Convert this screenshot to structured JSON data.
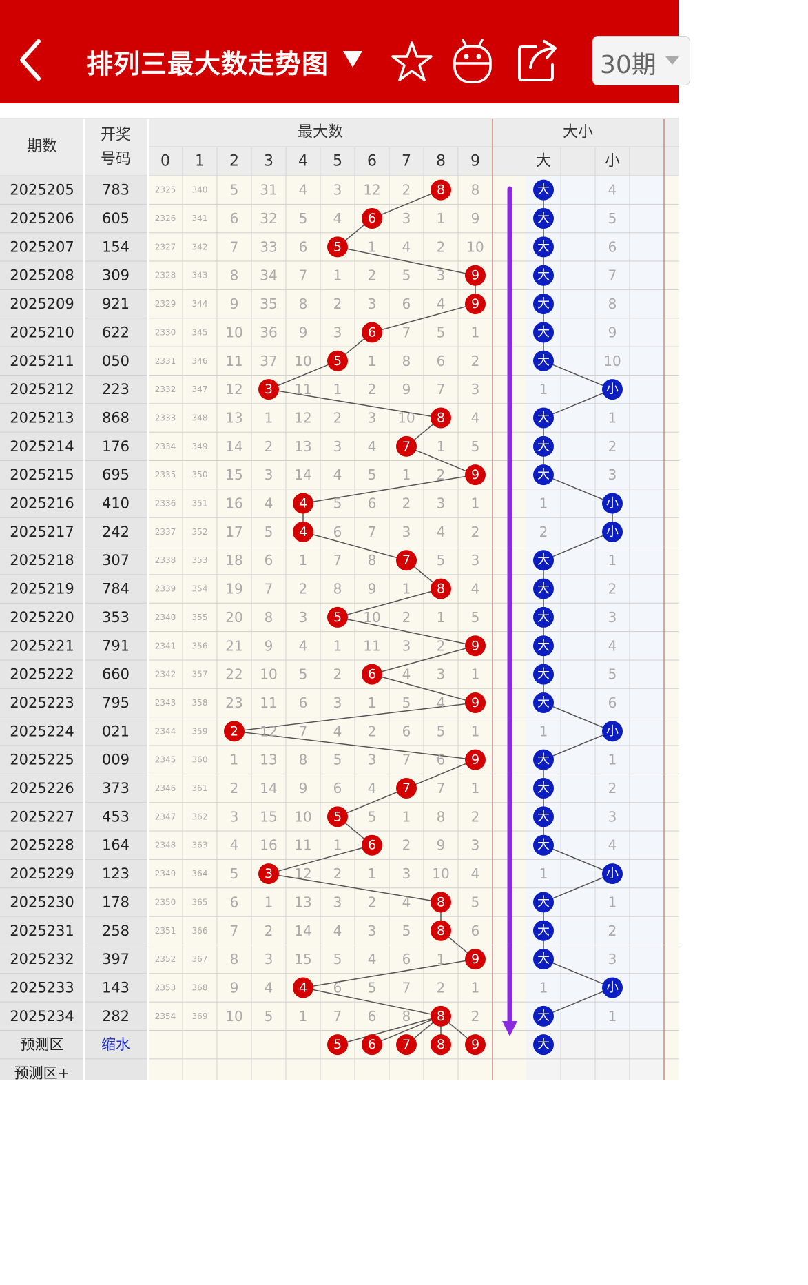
{
  "header": {
    "title": "排列三最大数走势图",
    "period_select": "30期",
    "icons": {
      "back": "back-arrow-icon",
      "title_dropdown": "caret-down-icon",
      "favorite": "star-icon",
      "robot": "android-robot-icon",
      "share": "share-icon",
      "period_dropdown": "chevron-down-icon"
    }
  },
  "colors": {
    "brand_red": "#d10000",
    "ball_red": "#d40000",
    "ball_blue": "#0d1ec0",
    "arrow_purple": "#8a2be2"
  },
  "table": {
    "col_period": "期数",
    "col_code_line1": "开奖",
    "col_code_line2": "号码",
    "group_max": "最大数",
    "group_size": "大小",
    "digit_headers": [
      "0",
      "1",
      "2",
      "3",
      "4",
      "5",
      "6",
      "7",
      "8",
      "9"
    ],
    "size_headers": [
      "大",
      "",
      "小"
    ],
    "rows": [
      {
        "p": "2025205",
        "c": "783",
        "cells": [
          "2325",
          "340",
          "5",
          "31",
          "4",
          "3",
          "12",
          "2",
          "8",
          "8"
        ],
        "hit": 8,
        "size": [
          "大",
          "",
          "4"
        ],
        "sz": 0
      },
      {
        "p": "2025206",
        "c": "605",
        "cells": [
          "2326",
          "341",
          "6",
          "32",
          "5",
          "4",
          "6",
          "3",
          "1",
          "9"
        ],
        "hit": 6,
        "size": [
          "大",
          "",
          "5"
        ],
        "sz": 0
      },
      {
        "p": "2025207",
        "c": "154",
        "cells": [
          "2327",
          "342",
          "7",
          "33",
          "6",
          "5",
          "1",
          "4",
          "2",
          "10"
        ],
        "hit": 5,
        "size": [
          "大",
          "",
          "6"
        ],
        "sz": 0
      },
      {
        "p": "2025208",
        "c": "309",
        "cells": [
          "2328",
          "343",
          "8",
          "34",
          "7",
          "1",
          "2",
          "5",
          "3",
          "9"
        ],
        "hit": 9,
        "size": [
          "大",
          "",
          "7"
        ],
        "sz": 0
      },
      {
        "p": "2025209",
        "c": "921",
        "cells": [
          "2329",
          "344",
          "9",
          "35",
          "8",
          "2",
          "3",
          "6",
          "4",
          "9"
        ],
        "hit": 9,
        "size": [
          "大",
          "",
          "8"
        ],
        "sz": 0
      },
      {
        "p": "2025210",
        "c": "622",
        "cells": [
          "2330",
          "345",
          "10",
          "36",
          "9",
          "3",
          "6",
          "7",
          "5",
          "1"
        ],
        "hit": 6,
        "size": [
          "大",
          "",
          "9"
        ],
        "sz": 0
      },
      {
        "p": "2025211",
        "c": "050",
        "cells": [
          "2331",
          "346",
          "11",
          "37",
          "10",
          "5",
          "1",
          "8",
          "6",
          "2"
        ],
        "hit": 5,
        "size": [
          "大",
          "",
          "10"
        ],
        "sz": 0
      },
      {
        "p": "2025212",
        "c": "223",
        "cells": [
          "2332",
          "347",
          "12",
          "3",
          "11",
          "1",
          "2",
          "9",
          "7",
          "3"
        ],
        "hit": 3,
        "size": [
          "1",
          "",
          "小"
        ],
        "sz": 2
      },
      {
        "p": "2025213",
        "c": "868",
        "cells": [
          "2333",
          "348",
          "13",
          "1",
          "12",
          "2",
          "3",
          "10",
          "8",
          "4"
        ],
        "hit": 8,
        "size": [
          "大",
          "",
          "1"
        ],
        "sz": 0
      },
      {
        "p": "2025214",
        "c": "176",
        "cells": [
          "2334",
          "349",
          "14",
          "2",
          "13",
          "3",
          "4",
          "7",
          "1",
          "5"
        ],
        "hit": 7,
        "size": [
          "大",
          "",
          "2"
        ],
        "sz": 0
      },
      {
        "p": "2025215",
        "c": "695",
        "cells": [
          "2335",
          "350",
          "15",
          "3",
          "14",
          "4",
          "5",
          "1",
          "2",
          "9"
        ],
        "hit": 9,
        "size": [
          "大",
          "",
          "3"
        ],
        "sz": 0
      },
      {
        "p": "2025216",
        "c": "410",
        "cells": [
          "2336",
          "351",
          "16",
          "4",
          "4",
          "5",
          "6",
          "2",
          "3",
          "1"
        ],
        "hit": 4,
        "size": [
          "1",
          "",
          "小"
        ],
        "sz": 2
      },
      {
        "p": "2025217",
        "c": "242",
        "cells": [
          "2337",
          "352",
          "17",
          "5",
          "4",
          "6",
          "7",
          "3",
          "4",
          "2"
        ],
        "hit": 4,
        "size": [
          "2",
          "",
          "小"
        ],
        "sz": 2
      },
      {
        "p": "2025218",
        "c": "307",
        "cells": [
          "2338",
          "353",
          "18",
          "6",
          "1",
          "7",
          "8",
          "7",
          "5",
          "3"
        ],
        "hit": 7,
        "size": [
          "大",
          "",
          "1"
        ],
        "sz": 0
      },
      {
        "p": "2025219",
        "c": "784",
        "cells": [
          "2339",
          "354",
          "19",
          "7",
          "2",
          "8",
          "9",
          "1",
          "8",
          "4"
        ],
        "hit": 8,
        "size": [
          "大",
          "",
          "2"
        ],
        "sz": 0
      },
      {
        "p": "2025220",
        "c": "353",
        "cells": [
          "2340",
          "355",
          "20",
          "8",
          "3",
          "5",
          "10",
          "2",
          "1",
          "5"
        ],
        "hit": 5,
        "size": [
          "大",
          "",
          "3"
        ],
        "sz": 0
      },
      {
        "p": "2025221",
        "c": "791",
        "cells": [
          "2341",
          "356",
          "21",
          "9",
          "4",
          "1",
          "11",
          "3",
          "2",
          "9"
        ],
        "hit": 9,
        "size": [
          "大",
          "",
          "4"
        ],
        "sz": 0
      },
      {
        "p": "2025222",
        "c": "660",
        "cells": [
          "2342",
          "357",
          "22",
          "10",
          "5",
          "2",
          "6",
          "4",
          "3",
          "1"
        ],
        "hit": 6,
        "size": [
          "大",
          "",
          "5"
        ],
        "sz": 0
      },
      {
        "p": "2025223",
        "c": "795",
        "cells": [
          "2343",
          "358",
          "23",
          "11",
          "6",
          "3",
          "1",
          "5",
          "4",
          "9"
        ],
        "hit": 9,
        "size": [
          "大",
          "",
          "6"
        ],
        "sz": 0
      },
      {
        "p": "2025224",
        "c": "021",
        "cells": [
          "2344",
          "359",
          "2",
          "12",
          "7",
          "4",
          "2",
          "6",
          "5",
          "1"
        ],
        "hit": 2,
        "size": [
          "1",
          "",
          "小"
        ],
        "sz": 2
      },
      {
        "p": "2025225",
        "c": "009",
        "cells": [
          "2345",
          "360",
          "1",
          "13",
          "8",
          "5",
          "3",
          "7",
          "6",
          "9"
        ],
        "hit": 9,
        "size": [
          "大",
          "",
          "1"
        ],
        "sz": 0
      },
      {
        "p": "2025226",
        "c": "373",
        "cells": [
          "2346",
          "361",
          "2",
          "14",
          "9",
          "6",
          "4",
          "7",
          "7",
          "1"
        ],
        "hit": 7,
        "size": [
          "大",
          "",
          "2"
        ],
        "sz": 0
      },
      {
        "p": "2025227",
        "c": "453",
        "cells": [
          "2347",
          "362",
          "3",
          "15",
          "10",
          "5",
          "5",
          "1",
          "8",
          "2"
        ],
        "hit": 5,
        "size": [
          "大",
          "",
          "3"
        ],
        "sz": 0
      },
      {
        "p": "2025228",
        "c": "164",
        "cells": [
          "2348",
          "363",
          "4",
          "16",
          "11",
          "1",
          "6",
          "2",
          "9",
          "3"
        ],
        "hit": 6,
        "size": [
          "大",
          "",
          "4"
        ],
        "sz": 0
      },
      {
        "p": "2025229",
        "c": "123",
        "cells": [
          "2349",
          "364",
          "5",
          "3",
          "12",
          "2",
          "1",
          "3",
          "10",
          "4"
        ],
        "hit": 3,
        "size": [
          "1",
          "",
          "小"
        ],
        "sz": 2
      },
      {
        "p": "2025230",
        "c": "178",
        "cells": [
          "2350",
          "365",
          "6",
          "1",
          "13",
          "3",
          "2",
          "4",
          "8",
          "5"
        ],
        "hit": 8,
        "size": [
          "大",
          "",
          "1"
        ],
        "sz": 0
      },
      {
        "p": "2025231",
        "c": "258",
        "cells": [
          "2351",
          "366",
          "7",
          "2",
          "14",
          "4",
          "3",
          "5",
          "8",
          "6"
        ],
        "hit": 8,
        "size": [
          "大",
          "",
          "2"
        ],
        "sz": 0
      },
      {
        "p": "2025232",
        "c": "397",
        "cells": [
          "2352",
          "367",
          "8",
          "3",
          "15",
          "5",
          "4",
          "6",
          "1",
          "9"
        ],
        "hit": 9,
        "size": [
          "大",
          "",
          "3"
        ],
        "sz": 0
      },
      {
        "p": "2025233",
        "c": "143",
        "cells": [
          "2353",
          "368",
          "9",
          "4",
          "4",
          "6",
          "5",
          "7",
          "2",
          "1"
        ],
        "hit": 4,
        "size": [
          "1",
          "",
          "小"
        ],
        "sz": 2
      },
      {
        "p": "2025234",
        "c": "282",
        "cells": [
          "2354",
          "369",
          "10",
          "5",
          "1",
          "7",
          "6",
          "8",
          "8",
          "2"
        ],
        "hit": 8,
        "size": [
          "大",
          "",
          "1"
        ],
        "sz": 0
      }
    ],
    "predict": {
      "label": "预测区",
      "link": "缩水",
      "balls": [
        "5",
        "6",
        "7",
        "8",
        "9"
      ],
      "ball_cols": [
        5,
        6,
        7,
        8,
        9
      ],
      "size_ball": "大"
    },
    "predict_plus": {
      "label": "预测区+"
    }
  }
}
